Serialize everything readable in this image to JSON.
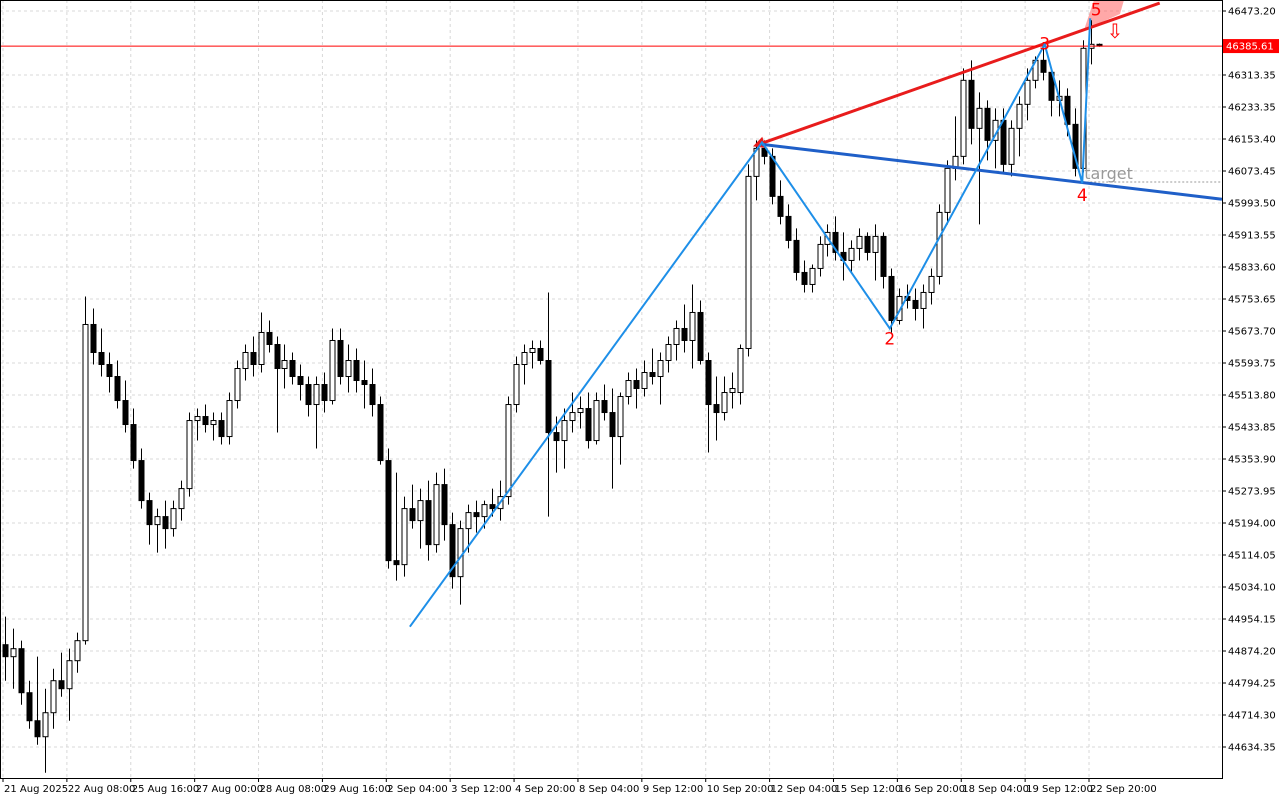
{
  "chart_data": {
    "type": "candlestick",
    "ylim": [
      44556.9,
      46500.7
    ],
    "yticks": [
      {
        "value": 46473.2,
        "label": "46473.20"
      },
      46313.35,
      46233.35,
      {
        "value": 46153.4,
        "label": "46153.40"
      },
      46073.45,
      {
        "value": 45993.5,
        "label": "45993.50"
      },
      45913.55,
      {
        "value": 45833.6,
        "label": "45833.60"
      },
      45753.65,
      {
        "value": 45673.7,
        "label": "45673.70"
      },
      45593.75,
      {
        "value": 45513.8,
        "label": "45513.80"
      },
      45433.85,
      {
        "value": 45353.9,
        "label": "45353.90"
      },
      45273.95,
      {
        "value": 45194,
        "label": "45194.00"
      },
      45114.05,
      {
        "value": 45034.1,
        "label": "45034.10"
      },
      44954.15,
      {
        "value": 44874.2,
        "label": "44874.20"
      },
      44794.25,
      {
        "value": 44714.3,
        "label": "44714.30"
      },
      44634.35
    ],
    "xtick_labels": [
      "21 Aug 2025",
      "22 Aug 08:00",
      "25 Aug 16:00",
      "27 Aug 00:00",
      "28 Aug 08:00",
      "29 Aug 16:00",
      "2 Sep 04:00",
      "3 Sep 12:00",
      "4 Sep 20:00",
      "8 Sep 04:00",
      "9 Sep 12:00",
      "10 Sep 20:00",
      "12 Sep 04:00",
      "15 Sep 12:00",
      "16 Sep 20:00",
      "18 Sep 04:00",
      "19 Sep 12:00",
      "22 Sep 20:00"
    ],
    "grid": true,
    "up_color": "#ffffff",
    "down_color": "#000000",
    "open": [
      44890,
      44860,
      44880,
      44770,
      44700,
      44660,
      44720,
      44800,
      44780,
      44850,
      44900,
      45690,
      45620,
      45590,
      45560,
      45500,
      45440,
      45350,
      45250,
      45190,
      45210,
      45180,
      45230,
      45280,
      45450,
      45460,
      45440,
      45450,
      45410,
      45500,
      45580,
      45620,
      45590,
      45670,
      45640,
      45580,
      45600,
      45560,
      45540,
      45490,
      45540,
      45500,
      45650,
      45560,
      45600,
      45550,
      45540,
      45490,
      45350,
      45100,
      45090,
      45230,
      45200,
      45250,
      45140,
      45290,
      45190,
      45060,
      45180,
      45220,
      45210,
      45240,
      45230,
      45260,
      45490,
      45590,
      45620,
      45630,
      45600,
      45420,
      45400,
      45450,
      45470,
      45480,
      45400,
      45500,
      45470,
      45410,
      45510,
      45550,
      45530,
      45570,
      45560,
      45600,
      45640,
      45680,
      45650,
      45720,
      45600,
      45490,
      45470,
      45520,
      45520,
      45630,
      46060,
      46130,
      46110,
      46010,
      45960,
      45900,
      45820,
      45790,
      45830,
      45890,
      45920,
      45870,
      45850,
      45880,
      45910,
      45870,
      45910,
      45810,
      45700,
      45760,
      45750,
      45730,
      45770,
      45810,
      45970,
      46080,
      46110,
      46300,
      46180,
      46230,
      46150,
      46200,
      46090,
      46180,
      46240,
      46300,
      46350,
      46320,
      46250,
      46260,
      46190,
      46080,
      46380,
      46390
    ],
    "high": [
      44960,
      44930,
      44900,
      44800,
      44860,
      44780,
      44830,
      44870,
      44880,
      44920,
      45760,
      45730,
      45680,
      45620,
      45600,
      45550,
      45480,
      45380,
      45270,
      45230,
      45250,
      45250,
      45300,
      45470,
      45480,
      45490,
      45470,
      45470,
      45520,
      45600,
      45640,
      45660,
      45720,
      45700,
      45660,
      45640,
      45620,
      45590,
      45560,
      45560,
      45570,
      45680,
      45680,
      45640,
      45630,
      45600,
      45580,
      45510,
      45380,
      45320,
      45260,
      45290,
      45280,
      45300,
      45320,
      45330,
      45220,
      45200,
      45240,
      45250,
      45250,
      45280,
      45300,
      45510,
      45610,
      45640,
      45650,
      45650,
      45770,
      45460,
      45480,
      45520,
      45510,
      45520,
      45520,
      45540,
      45530,
      45520,
      45570,
      45580,
      45600,
      45630,
      45620,
      45660,
      45700,
      45740,
      45790,
      45750,
      45620,
      45560,
      45560,
      45570,
      45640,
      46090,
      46150,
      46150,
      46130,
      46050,
      45990,
      45930,
      45850,
      45840,
      45910,
      45940,
      45960,
      45920,
      45900,
      45930,
      45920,
      45940,
      45920,
      45830,
      45780,
      45790,
      45780,
      45790,
      45830,
      45990,
      46100,
      46210,
      46330,
      46350,
      46270,
      46250,
      46230,
      46230,
      46200,
      46260,
      46330,
      46360,
      46390,
      46330,
      46300,
      46280,
      46230,
      46400,
      46450,
      46392
    ],
    "low": [
      44800,
      44780,
      44740,
      44680,
      44640,
      44570,
      44680,
      44760,
      44700,
      44820,
      44890,
      45590,
      45560,
      45520,
      45480,
      45420,
      45330,
      45230,
      45140,
      45120,
      45130,
      45160,
      45200,
      45260,
      45400,
      45420,
      45400,
      45390,
      45390,
      45480,
      45550,
      45560,
      45570,
      45620,
      45420,
      45530,
      45540,
      45500,
      45460,
      45380,
      45470,
      45490,
      45540,
      45520,
      45520,
      45480,
      45460,
      45340,
      45080,
      45050,
      45060,
      45180,
      45130,
      45100,
      45120,
      45150,
      45030,
      44990,
      45120,
      45170,
      45180,
      45210,
      45200,
      45240,
      45470,
      45540,
      45580,
      45590,
      45210,
      45320,
      45330,
      45420,
      45430,
      45380,
      45390,
      45450,
      45280,
      45340,
      45490,
      45480,
      45510,
      45540,
      45490,
      45570,
      45600,
      45620,
      45580,
      45590,
      45370,
      45400,
      45450,
      45480,
      45490,
      45610,
      46000,
      46090,
      45990,
      45940,
      45880,
      45800,
      45770,
      45770,
      45810,
      45860,
      45850,
      45800,
      45820,
      45850,
      45850,
      45800,
      45780,
      45670,
      45690,
      45730,
      45700,
      45680,
      45740,
      45790,
      45940,
      46050,
      46090,
      46140,
      45940,
      46100,
      46080,
      46070,
      46060,
      46110,
      46200,
      46280,
      46300,
      46210,
      46210,
      46160,
      46060,
      46070,
      46340,
      46384
    ],
    "close": [
      44860,
      44880,
      44770,
      44700,
      44660,
      44720,
      44800,
      44780,
      44850,
      44900,
      45690,
      45620,
      45590,
      45560,
      45500,
      45440,
      45350,
      45250,
      45190,
      45210,
      45180,
      45230,
      45280,
      45450,
      45460,
      45440,
      45450,
      45410,
      45500,
      45580,
      45620,
      45590,
      45670,
      45640,
      45580,
      45600,
      45560,
      45540,
      45490,
      45540,
      45500,
      45650,
      45560,
      45600,
      45550,
      45540,
      45490,
      45350,
      45100,
      45090,
      45230,
      45200,
      45250,
      45140,
      45290,
      45190,
      45060,
      45180,
      45220,
      45210,
      45240,
      45230,
      45260,
      45490,
      45590,
      45620,
      45630,
      45600,
      45420,
      45400,
      45450,
      45470,
      45480,
      45400,
      45500,
      45470,
      45410,
      45510,
      45550,
      45530,
      45570,
      45560,
      45600,
      45640,
      45680,
      45650,
      45720,
      45600,
      45490,
      45470,
      45520,
      45530,
      45630,
      46060,
      46130,
      46110,
      46010,
      45960,
      45900,
      45820,
      45790,
      45830,
      45890,
      45920,
      45870,
      45850,
      45880,
      45910,
      45870,
      45910,
      45810,
      45700,
      45760,
      45750,
      45730,
      45770,
      45810,
      45970,
      46080,
      46110,
      46300,
      46180,
      46230,
      46150,
      46200,
      46090,
      46180,
      46240,
      46300,
      46350,
      46320,
      46250,
      46260,
      46190,
      46080,
      46380,
      46390,
      46385.61
    ],
    "price_line": {
      "value": 46385.61,
      "color": "#ff0000"
    },
    "zigzag": {
      "color": "#1e8fe8",
      "x": [
        50.7,
        94.8,
        110.8,
        130.2,
        134.9,
        135.9
      ],
      "values": [
        44935,
        46145,
        45680,
        46390,
        46043,
        46455
      ],
      "labels": [
        null,
        null,
        "2",
        "3",
        "4",
        "5"
      ],
      "label_color": "#ff0000"
    },
    "trendlines": [
      {
        "color": "#e81c1c",
        "x": [
          94.8,
          144.6
        ],
        "values": [
          46143,
          46493
        ]
      },
      {
        "color": "#1f5fc8",
        "x": [
          94.8,
          152.4
        ],
        "values": [
          46140,
          46003
        ]
      }
    ],
    "target": {
      "value": 46046,
      "x": 134.9,
      "text": "target",
      "color": "#999999"
    },
    "signal_arrow": {
      "text": "⇩",
      "color": "#ff0000"
    }
  }
}
